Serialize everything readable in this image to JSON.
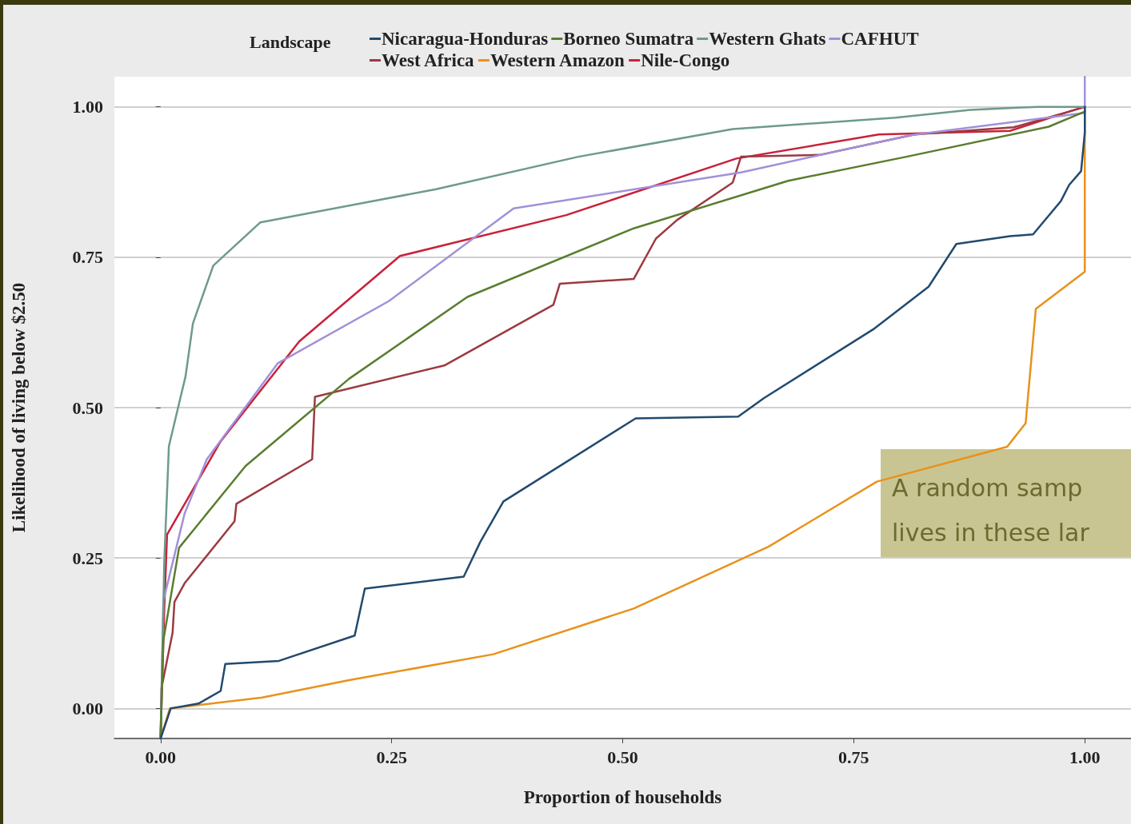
{
  "chart_data": {
    "type": "line",
    "xlabel": "Proportion of households",
    "ylabel": "Likelihood of living below $2.50",
    "legend_title": "Landscape",
    "legend": "top",
    "grid": "y",
    "xlim": [
      -0.05,
      1.05
    ],
    "ylim": [
      -0.05,
      1.05
    ],
    "xticks": [
      {
        "value": 0,
        "label": "0.00"
      },
      {
        "value": 0.25,
        "label": "0.25"
      },
      {
        "value": 0.5,
        "label": "0.50"
      },
      {
        "value": 0.75,
        "label": "0.75"
      },
      {
        "value": 1,
        "label": "1.00"
      }
    ],
    "yticks": [
      {
        "value": 0,
        "label": "0.00"
      },
      {
        "value": 0.25,
        "label": "0.25"
      },
      {
        "value": 0.5,
        "label": "0.50"
      },
      {
        "value": 0.75,
        "label": "0.75"
      },
      {
        "value": 1,
        "label": "1.00"
      }
    ],
    "annotations": [
      "A random samp\nlives in these lar"
    ],
    "series": [
      {
        "name": "Nicaragua-Honduras",
        "color": "#224a6e",
        "x": [
          0,
          0.011,
          0.041,
          0.065,
          0.07,
          0.128,
          0.21,
          0.221,
          0.328,
          0.346,
          0.371,
          0.514,
          0.625,
          0.653,
          0.771,
          0.831,
          0.861,
          0.919,
          0.944,
          0.974,
          0.983,
          0.996,
          1.0,
          1.0
        ],
        "values": [
          -0.05,
          0.0,
          0.008,
          0.029,
          0.074,
          0.079,
          0.121,
          0.199,
          0.219,
          0.277,
          0.344,
          0.482,
          0.485,
          0.516,
          0.63,
          0.701,
          0.772,
          0.785,
          0.788,
          0.843,
          0.87,
          0.893,
          0.957,
          1.0
        ]
      },
      {
        "name": "Borneo Sumatra",
        "color": "#5a7d2f",
        "x": [
          0,
          0.003,
          0.02,
          0.092,
          0.204,
          0.332,
          0.512,
          0.679,
          0.807,
          0.961,
          1.0
        ],
        "values": [
          -0.05,
          0.113,
          0.267,
          0.403,
          0.548,
          0.684,
          0.798,
          0.877,
          0.917,
          0.967,
          0.992
        ]
      },
      {
        "name": "Western Ghats",
        "color": "#6e9a8c",
        "x": [
          0,
          0.004,
          0.009,
          0.027,
          0.035,
          0.057,
          0.108,
          0.298,
          0.452,
          0.619,
          0.795,
          0.876,
          0.949,
          1.0
        ],
        "values": [
          -0.05,
          0.245,
          0.436,
          0.552,
          0.64,
          0.736,
          0.808,
          0.863,
          0.917,
          0.963,
          0.982,
          0.995,
          1.0,
          1.0
        ]
      },
      {
        "name": "CAFHUT",
        "color": "#a290d8",
        "x": [
          0,
          0.003,
          0.026,
          0.05,
          0.127,
          0.247,
          0.382,
          0.628,
          0.812,
          1.0,
          1.0
        ],
        "values": [
          -0.05,
          0.179,
          0.324,
          0.414,
          0.574,
          0.677,
          0.831,
          0.891,
          0.953,
          0.99,
          1.05
        ]
      },
      {
        "name": "West Africa",
        "color": "#9c3a40",
        "x": [
          0,
          0.001,
          0.013,
          0.015,
          0.026,
          0.08,
          0.082,
          0.164,
          0.167,
          0.307,
          0.425,
          0.432,
          0.512,
          0.536,
          0.559,
          0.619,
          0.628,
          0.713,
          0.816,
          0.923,
          0.983,
          1.0
        ],
        "values": [
          -0.05,
          0.034,
          0.126,
          0.177,
          0.208,
          0.311,
          0.34,
          0.414,
          0.518,
          0.57,
          0.671,
          0.706,
          0.714,
          0.781,
          0.812,
          0.874,
          0.917,
          0.92,
          0.954,
          0.966,
          0.992,
          1.0
        ]
      },
      {
        "name": "Western Amazon",
        "color": "#e8921c",
        "x": [
          0,
          0.01,
          0.11,
          0.204,
          0.36,
          0.512,
          0.658,
          0.775,
          0.916,
          0.936,
          0.947,
          1.0,
          1.0
        ],
        "values": [
          -0.05,
          0.0,
          0.018,
          0.047,
          0.09,
          0.166,
          0.269,
          0.377,
          0.435,
          0.474,
          0.664,
          0.726,
          1.0
        ]
      },
      {
        "name": "Nile-Congo",
        "color": "#c8213a",
        "x": [
          0,
          0.004,
          0.007,
          0.065,
          0.15,
          0.259,
          0.439,
          0.623,
          0.777,
          0.919,
          0.983,
          1.0
        ],
        "values": [
          -0.05,
          0.166,
          0.289,
          0.444,
          0.61,
          0.752,
          0.82,
          0.914,
          0.954,
          0.96,
          0.992,
          1.0
        ]
      }
    ]
  }
}
